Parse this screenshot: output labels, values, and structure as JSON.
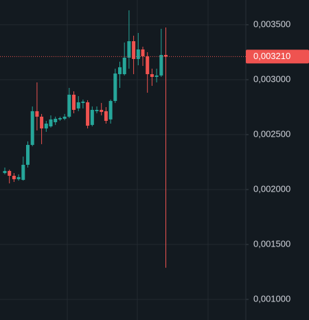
{
  "chart_data": {
    "type": "candlestick",
    "categories": [
      null,
      null,
      null,
      null,
      null,
      null,
      null,
      null,
      null,
      null,
      null,
      null,
      null,
      null,
      null,
      null,
      null,
      null,
      null,
      null,
      null,
      null,
      null,
      null,
      null,
      null,
      null,
      null,
      null,
      null,
      null,
      null,
      null,
      null,
      null,
      null
    ],
    "open": [
      0.00215,
      0.002169,
      0.002125,
      0.002094,
      0.002088,
      0.002225,
      0.002406,
      0.002713,
      0.002663,
      0.002556,
      0.002575,
      0.002613,
      0.002638,
      0.002644,
      0.002663,
      0.002863,
      0.002738,
      0.002788,
      0.002794,
      0.002588,
      0.002713,
      0.002725,
      0.002713,
      0.002638,
      0.002806,
      0.00305,
      0.00305,
      0.0032,
      0.00335,
      0.003188,
      0.003275,
      0.003213,
      0.00305,
      0.003025,
      0.003038,
      0.003225
    ],
    "high": [
      0.0022,
      0.002181,
      0.00215,
      0.002138,
      0.0023,
      0.002438,
      0.002756,
      0.002975,
      0.002688,
      0.002625,
      0.002675,
      0.002663,
      0.002663,
      0.002688,
      0.002925,
      0.002894,
      0.00285,
      0.002819,
      0.002813,
      0.002756,
      0.002756,
      0.002788,
      0.00275,
      0.002819,
      0.0031,
      0.003163,
      0.003338,
      0.003631,
      0.0034,
      0.003425,
      0.0033,
      0.00325,
      0.0031,
      0.0031,
      0.003463,
      0.003475
    ],
    "low": [
      0.002138,
      0.002056,
      0.002069,
      0.002081,
      0.002081,
      0.0022,
      0.002394,
      0.002538,
      0.002413,
      0.002525,
      0.002563,
      0.002588,
      0.002625,
      0.002631,
      0.00265,
      0.002694,
      0.002713,
      0.002738,
      0.002556,
      0.002575,
      0.002694,
      0.002675,
      0.0026,
      0.0026,
      0.002788,
      0.002925,
      0.003038,
      0.0031,
      0.00305,
      0.003131,
      0.003125,
      0.002881,
      0.002944,
      0.002975,
      0.003025,
      0.001288
    ],
    "close": [
      0.002169,
      0.002125,
      0.002094,
      0.002113,
      0.002225,
      0.002406,
      0.002713,
      0.002663,
      0.002556,
      0.0026,
      0.002638,
      0.002644,
      0.00265,
      0.002663,
      0.002863,
      0.002725,
      0.002794,
      0.0028,
      0.002581,
      0.002725,
      0.002725,
      0.002706,
      0.002625,
      0.002806,
      0.003056,
      0.003113,
      0.0032,
      0.00335,
      0.003188,
      0.003275,
      0.003213,
      0.00305,
      0.003025,
      0.003038,
      0.003225,
      0.00321
    ],
    "up_color": "#26a69a",
    "down_color": "#ef5350",
    "ylim": [
      0.0008125,
      0.003725
    ],
    "yticks": [
      {
        "value": 0.0035,
        "label": "0,003500"
      },
      {
        "value": 0.003,
        "label": "0,003000"
      },
      {
        "value": 0.0025,
        "label": "0,002500"
      },
      {
        "value": 0.002,
        "label": "0,002000"
      },
      {
        "value": 0.0015,
        "label": "0,001500"
      },
      {
        "value": 0.001,
        "label": "0,001000"
      }
    ],
    "grid": true,
    "last_price": {
      "value": 0.00321,
      "label": "0,003210"
    }
  }
}
